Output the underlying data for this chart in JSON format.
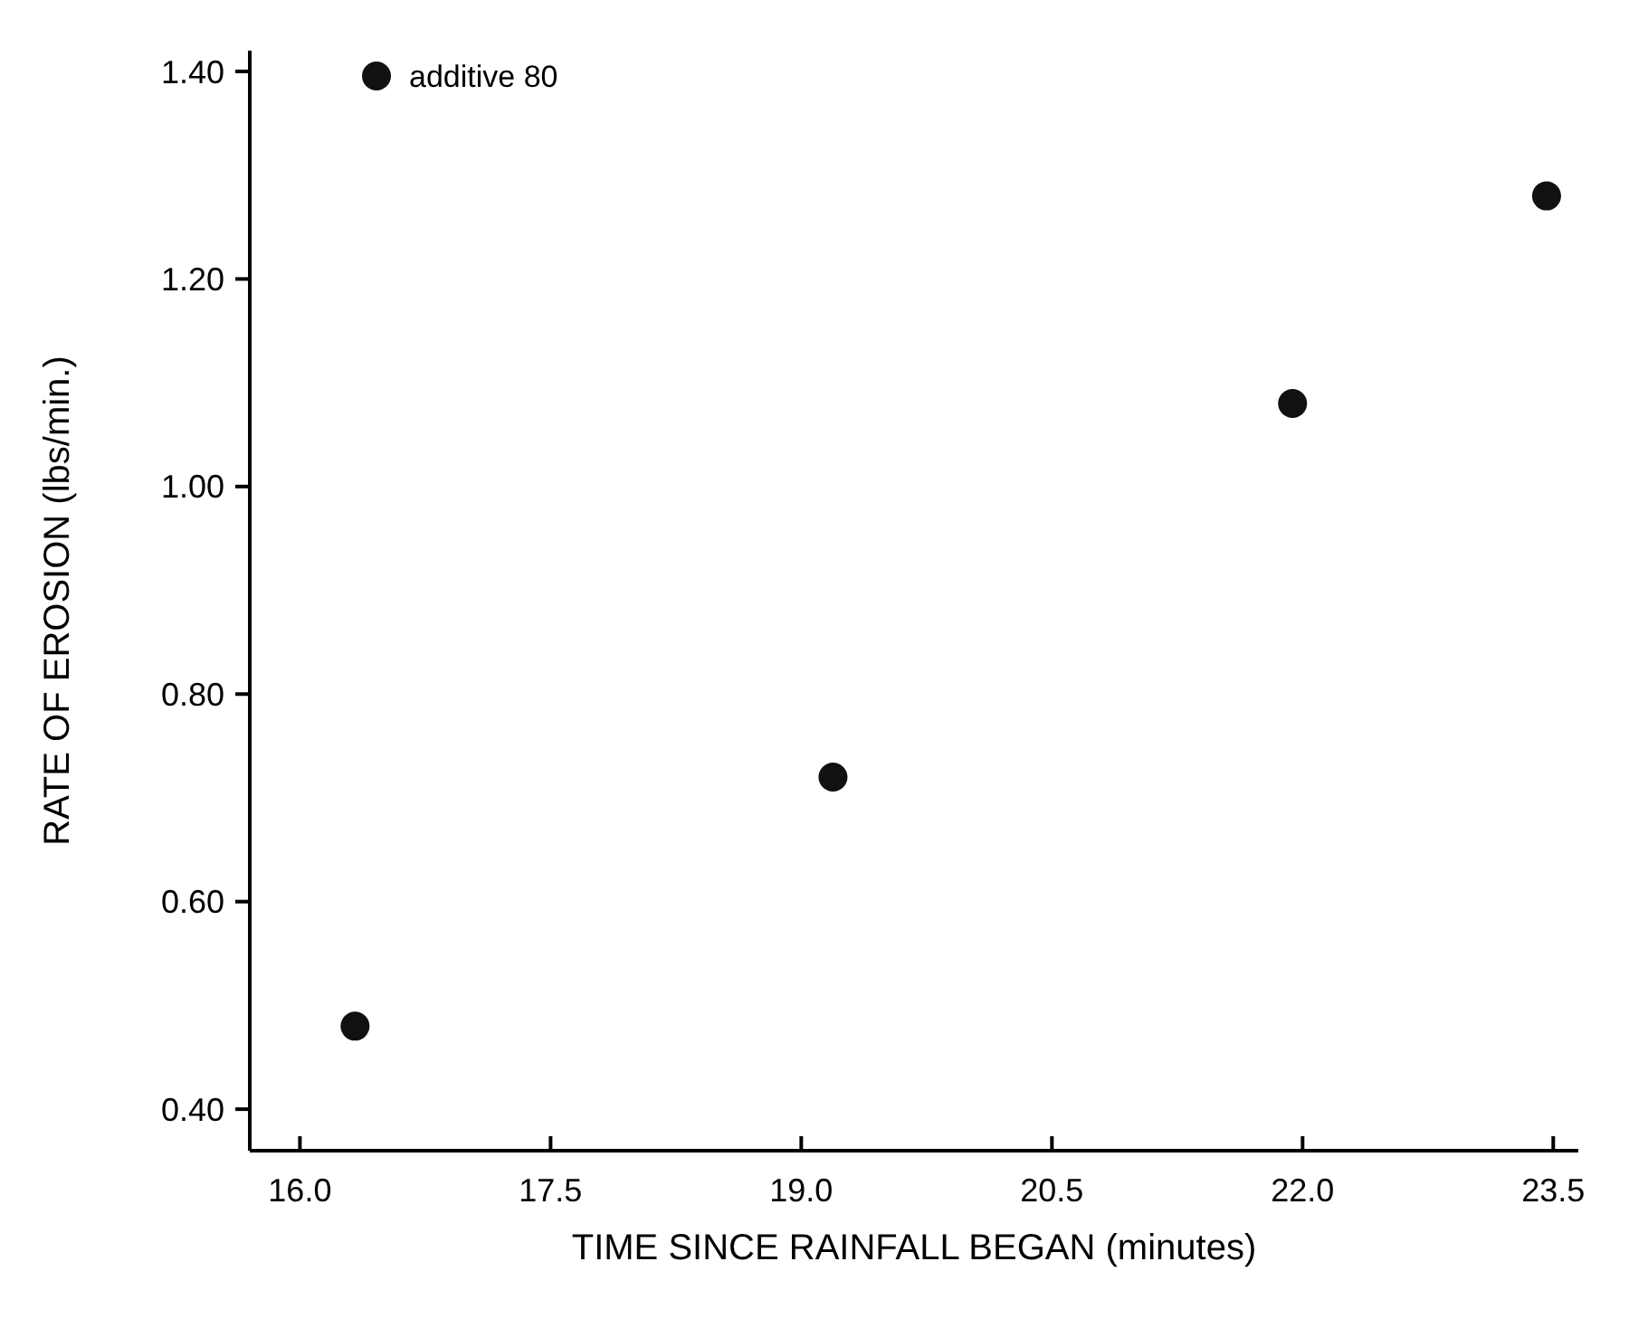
{
  "chart_data": {
    "type": "scatter",
    "xlabel": "TIME SINCE RAINFALL BEGAN (minutes)",
    "ylabel": "RATE OF EROSION (lbs/min.)",
    "series": [
      {
        "name": "additive 80",
        "color": "#111111",
        "x": [
          16.33,
          19.19,
          21.94,
          23.46
        ],
        "values": [
          0.48,
          0.72,
          1.08,
          1.28
        ]
      }
    ],
    "xlim": [
      15.7,
      23.65
    ],
    "ylim": [
      0.36,
      1.42
    ],
    "xticks": [
      {
        "value": 16,
        "label": "16.0"
      },
      {
        "value": 17.5,
        "label": "17.5"
      },
      {
        "value": 19,
        "label": "19.0"
      },
      {
        "value": 20.5,
        "label": "20.5"
      },
      {
        "value": 22,
        "label": "22.0"
      },
      {
        "value": 23.5,
        "label": "23.5"
      }
    ],
    "yticks": [
      {
        "value": 0.4,
        "label": "0.40"
      },
      {
        "value": 0.6,
        "label": "0.60"
      },
      {
        "value": 0.8,
        "label": "0.80"
      },
      {
        "value": 1.0,
        "label": "1.00"
      },
      {
        "value": 1.2,
        "label": "1.20"
      },
      {
        "value": 1.4,
        "label": "1.40"
      }
    ],
    "marker": "circle",
    "legend": "top left",
    "grid": false
  }
}
